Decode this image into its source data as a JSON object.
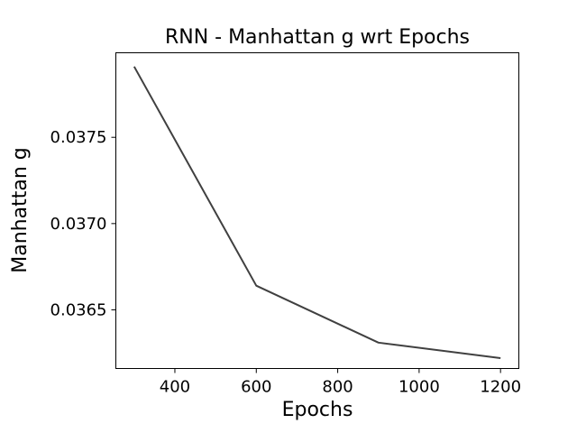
{
  "chart_data": {
    "type": "line",
    "title": "RNN - Manhattan g wrt Epochs",
    "xlabel": "Epochs",
    "ylabel": "Manhattan g",
    "x": [
      300,
      600,
      900,
      1200
    ],
    "series": [
      {
        "values": [
          0.03791,
          0.03664,
          0.03631,
          0.03622
        ],
        "color": "#404040"
      }
    ],
    "xlim": [
      255,
      1245
    ],
    "ylim": [
      0.03616,
      0.03799
    ],
    "xticks": [
      400,
      600,
      800,
      1000,
      1200
    ],
    "xtick_labels": [
      "400",
      "600",
      "800",
      "1000",
      "1200"
    ],
    "yticks": [
      0.0365,
      0.037,
      0.0375
    ],
    "ytick_labels": [
      "0.0365",
      "0.0370",
      "0.0375"
    ],
    "grid": false
  }
}
